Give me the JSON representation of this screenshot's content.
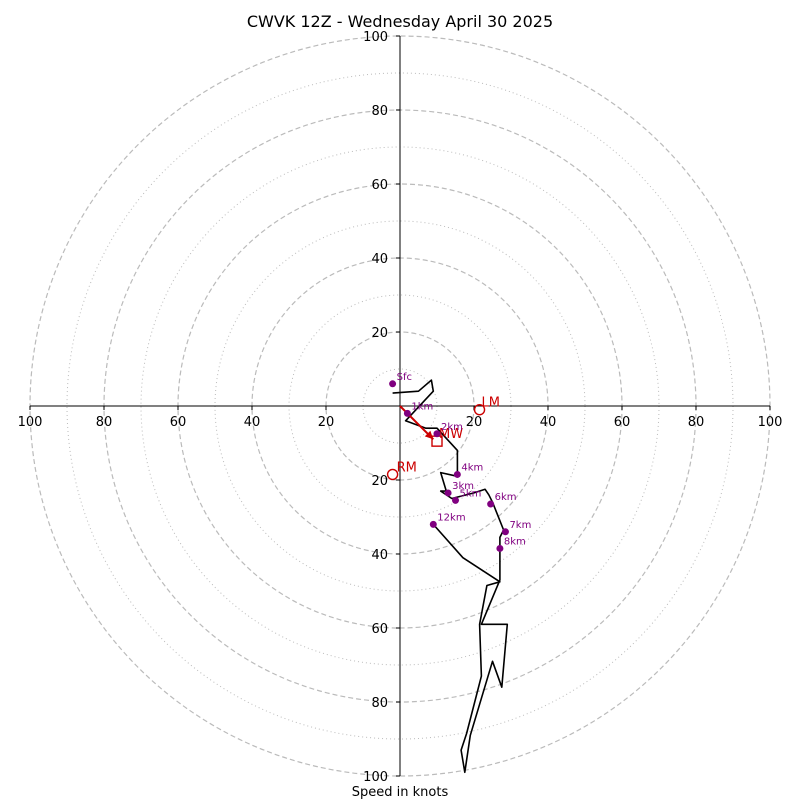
{
  "chart_data": {
    "type": "hodograph",
    "title": "CWVK 12Z - Wednesday April 30 2025",
    "xlabel": "Speed in knots",
    "rmax": 100,
    "rings_major": [
      20,
      40,
      60,
      80,
      100
    ],
    "rings_minor": [
      10,
      30,
      50,
      70,
      90
    ],
    "tick_labels": [
      "20",
      "40",
      "60",
      "80",
      "100"
    ],
    "units": "knots",
    "colors": {
      "trace": "#000000",
      "height_marker": "#800080",
      "motion": "#cc0000",
      "grid": "#bbbbbb",
      "axes": "#000000"
    },
    "trace": [
      [
        -2,
        3.5
      ],
      [
        5,
        4
      ],
      [
        8.5,
        7
      ],
      [
        9,
        4
      ],
      [
        1.5,
        -4
      ],
      [
        7,
        -6
      ],
      [
        10,
        -6
      ],
      [
        15.5,
        -12
      ],
      [
        15.5,
        -19
      ],
      [
        11,
        -18
      ],
      [
        12.5,
        -23
      ],
      [
        11,
        -23
      ],
      [
        14,
        -25
      ],
      [
        16,
        -24.5
      ],
      [
        20,
        -23.5
      ],
      [
        23,
        -22.5
      ],
      [
        24,
        -24
      ],
      [
        25,
        -26
      ],
      [
        26,
        -28.5
      ],
      [
        28,
        -33.5
      ],
      [
        27,
        -35.5
      ],
      [
        27,
        -38.5
      ],
      [
        27,
        -47
      ],
      [
        22,
        -59
      ],
      [
        29,
        -59
      ],
      [
        27.5,
        -76
      ],
      [
        25,
        -69
      ],
      [
        22,
        -79
      ],
      [
        19,
        -89
      ],
      [
        17.5,
        -99
      ],
      [
        16.5,
        -93
      ],
      [
        18,
        -88.5
      ],
      [
        22,
        -73
      ],
      [
        21.5,
        -59
      ],
      [
        23.5,
        -48.5
      ],
      [
        27,
        -47.5
      ],
      [
        17,
        -41
      ],
      [
        9,
        -32
      ]
    ],
    "height_markers": [
      {
        "label": "Sfc",
        "u": -2,
        "v": 6
      },
      {
        "label": "1km",
        "u": 2,
        "v": -2
      },
      {
        "label": "2km",
        "u": 10,
        "v": -7.5
      },
      {
        "label": "3km",
        "u": 13,
        "v": -23.5
      },
      {
        "label": "4km",
        "u": 15.5,
        "v": -18.5
      },
      {
        "label": "5km",
        "u": 15,
        "v": -25.5
      },
      {
        "label": "6km",
        "u": 24.5,
        "v": -26.5
      },
      {
        "label": "7km",
        "u": 28.5,
        "v": -34
      },
      {
        "label": "8km",
        "u": 27,
        "v": -38.5
      },
      {
        "label": "12km",
        "u": 9,
        "v": -32
      }
    ],
    "storm_motion": {
      "lm": {
        "label": "LM",
        "u": 21.5,
        "v": -1
      },
      "rm": {
        "label": "RM",
        "u": -2,
        "v": -18.5
      },
      "mw": {
        "label": "MW",
        "u": 10,
        "v": -9.5
      },
      "arrow_from": [
        0,
        0
      ],
      "arrow_to": [
        9,
        -9
      ]
    }
  }
}
